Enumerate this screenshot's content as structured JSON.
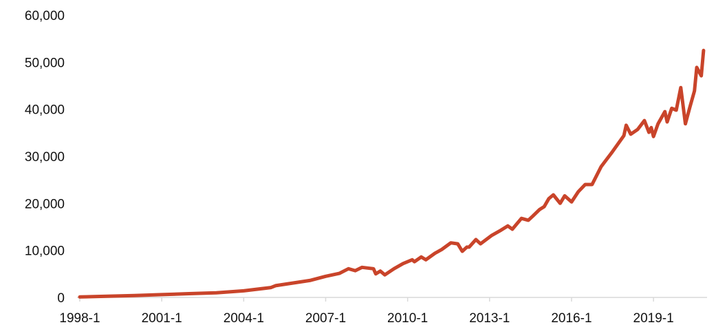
{
  "chart_data": {
    "type": "line",
    "title": "",
    "xlabel": "",
    "ylabel": "",
    "ylim": [
      0,
      60000
    ],
    "yticks": [
      0,
      10000,
      20000,
      30000,
      40000,
      50000,
      60000
    ],
    "ytick_labels": [
      "0",
      "10,000",
      "20,000",
      "30,000",
      "40,000",
      "50,000",
      "60,000"
    ],
    "xtick_labels": [
      "1998-1",
      "2001-1",
      "2004-1",
      "2007-1",
      "2010-1",
      "2013-1",
      "2016-1",
      "2019-1"
    ],
    "grid": false,
    "legend": "none",
    "colors": {
      "line": "#c9442a",
      "axis": "#d9d9d9"
    },
    "series": [
      {
        "points": [
          [
            "1998-1",
            100
          ],
          [
            "1999-1",
            250
          ],
          [
            "2000-1",
            400
          ],
          [
            "2001-1",
            600
          ],
          [
            "2002-1",
            800
          ],
          [
            "2003-1",
            1000
          ],
          [
            "2004-1",
            1400
          ],
          [
            "2005-1",
            2100
          ],
          [
            "2005-3",
            2500
          ],
          [
            "2006-6",
            3600
          ],
          [
            "2007-1",
            4500
          ],
          [
            "2007-7",
            5100
          ],
          [
            "2007-11",
            6100
          ],
          [
            "2008-2",
            5700
          ],
          [
            "2008-5",
            6400
          ],
          [
            "2008-10",
            6100
          ],
          [
            "2008-11",
            5000
          ],
          [
            "2009-1",
            5600
          ],
          [
            "2009-3",
            4800
          ],
          [
            "2009-7",
            6100
          ],
          [
            "2009-11",
            7200
          ],
          [
            "2010-3",
            8000
          ],
          [
            "2010-4",
            7600
          ],
          [
            "2010-7",
            8600
          ],
          [
            "2010-9",
            8000
          ],
          [
            "2011-1",
            9400
          ],
          [
            "2011-4",
            10200
          ],
          [
            "2011-8",
            11600
          ],
          [
            "2011-11",
            11400
          ],
          [
            "2012-1",
            9800
          ],
          [
            "2012-3",
            10700
          ],
          [
            "2012-4",
            10700
          ],
          [
            "2012-7",
            12300
          ],
          [
            "2012-9",
            11400
          ],
          [
            "2013-2",
            13200
          ],
          [
            "2013-6",
            14300
          ],
          [
            "2013-9",
            15200
          ],
          [
            "2013-11",
            14500
          ],
          [
            "2014-3",
            16800
          ],
          [
            "2014-6",
            16400
          ],
          [
            "2014-8",
            17300
          ],
          [
            "2014-11",
            18700
          ],
          [
            "2015-1",
            19300
          ],
          [
            "2015-3",
            21000
          ],
          [
            "2015-5",
            21800
          ],
          [
            "2015-8",
            20000
          ],
          [
            "2015-10",
            21600
          ],
          [
            "2016-1",
            20300
          ],
          [
            "2016-4",
            22500
          ],
          [
            "2016-7",
            24000
          ],
          [
            "2016-10",
            24000
          ],
          [
            "2017-2",
            27800
          ],
          [
            "2017-7",
            31000
          ],
          [
            "2017-12",
            34400
          ],
          [
            "2018-1",
            36600
          ],
          [
            "2018-3",
            34700
          ],
          [
            "2018-6",
            35700
          ],
          [
            "2018-9",
            37600
          ],
          [
            "2018-11",
            35100
          ],
          [
            "2018-12",
            36100
          ],
          [
            "2019-1",
            34200
          ],
          [
            "2019-3",
            36900
          ],
          [
            "2019-6",
            39500
          ],
          [
            "2019-7",
            37300
          ],
          [
            "2019-9",
            40200
          ],
          [
            "2019-11",
            39800
          ],
          [
            "2020-1",
            44600
          ],
          [
            "2020-3",
            36900
          ],
          [
            "2020-5",
            40500
          ],
          [
            "2020-7",
            43900
          ],
          [
            "2020-8",
            48900
          ],
          [
            "2020-10",
            47100
          ],
          [
            "2020-11",
            52500
          ]
        ]
      }
    ]
  }
}
